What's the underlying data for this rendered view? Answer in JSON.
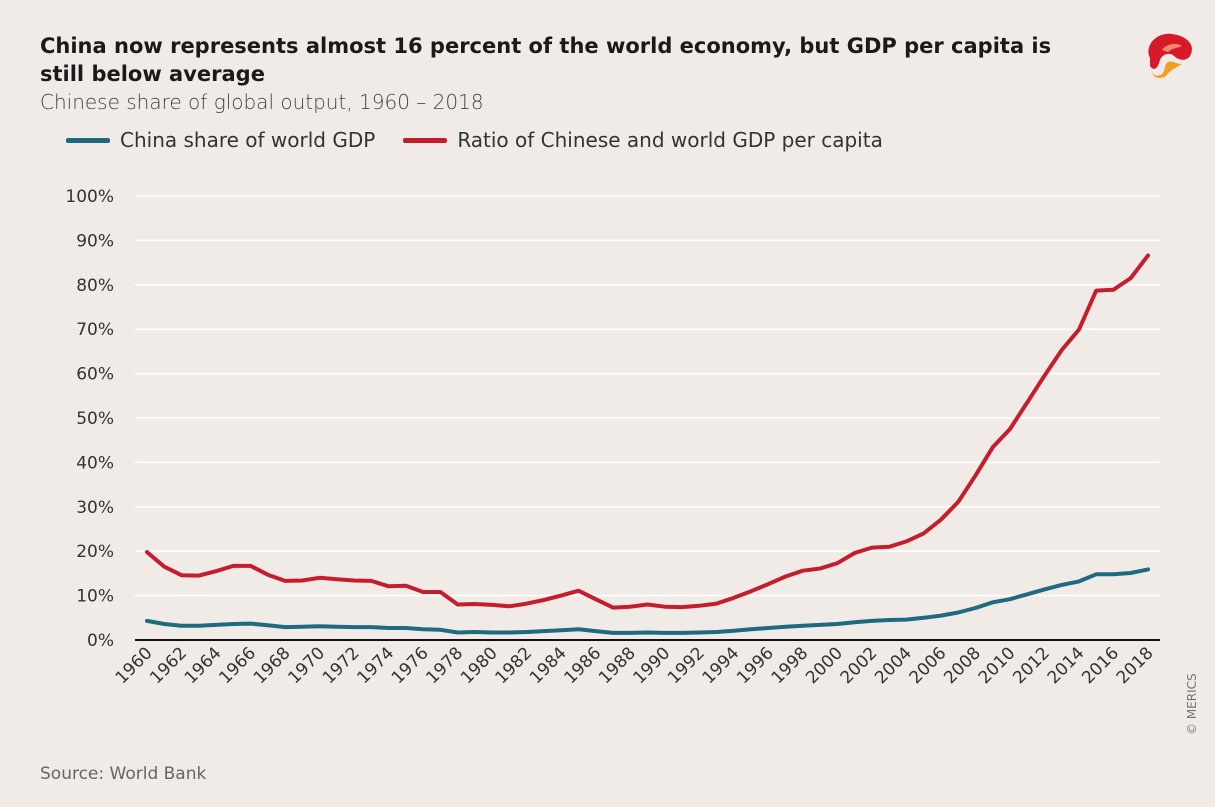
{
  "header": {
    "title": "China now represents almost 16 percent of the world economy, but GDP per capita is still below average",
    "subtitle": "Chinese share of global output, 1960 – 2018"
  },
  "footer": {
    "source": "Source: World Bank",
    "copyright": "© MERICS"
  },
  "colors": {
    "china_share": "#1e6a7e",
    "ratio": "#c41e2e",
    "logo_red": "#d71a2a",
    "logo_orange": "#f0a020"
  },
  "logo": {
    "icon": "merics-logo"
  },
  "chart_data": {
    "type": "line",
    "title": "China now represents almost 16 percent of the world economy, but GDP per capita is still below average",
    "subtitle": "Chinese share of global output, 1960 – 2018",
    "xlabel": "",
    "ylabel": "",
    "ylim": [
      0,
      100
    ],
    "yticks": [
      "0%",
      "10%",
      "20%",
      "30%",
      "40%",
      "50%",
      "60%",
      "70%",
      "80%",
      "90%",
      "100%"
    ],
    "xticks": [
      "1960",
      "1962",
      "1964",
      "1966",
      "1968",
      "1970",
      "1972",
      "1974",
      "1976",
      "1978",
      "1980",
      "1982",
      "1984",
      "1986",
      "1988",
      "1990",
      "1992",
      "1994",
      "1996",
      "1998",
      "2000",
      "2002",
      "2004",
      "2006",
      "2008",
      "2010",
      "2012",
      "2014",
      "2016",
      "2018"
    ],
    "grid": true,
    "legend": "top-left",
    "x": [
      1960,
      1961,
      1962,
      1963,
      1964,
      1965,
      1966,
      1967,
      1968,
      1969,
      1970,
      1971,
      1972,
      1973,
      1974,
      1975,
      1976,
      1977,
      1978,
      1979,
      1980,
      1981,
      1982,
      1983,
      1984,
      1985,
      1986,
      1987,
      1988,
      1989,
      1990,
      1991,
      1992,
      1993,
      1994,
      1995,
      1996,
      1997,
      1998,
      1999,
      2000,
      2001,
      2002,
      2003,
      2004,
      2005,
      2006,
      2007,
      2008,
      2009,
      2010,
      2011,
      2012,
      2013,
      2014,
      2015,
      2016,
      2017,
      2018
    ],
    "series": [
      {
        "name": "China share of world GDP",
        "values": [
          4.3,
          3.6,
          3.2,
          3.2,
          3.4,
          3.6,
          3.7,
          3.3,
          2.9,
          3.0,
          3.1,
          3.0,
          2.9,
          2.9,
          2.7,
          2.7,
          2.4,
          2.3,
          1.7,
          1.8,
          1.7,
          1.7,
          1.8,
          2.0,
          2.2,
          2.4,
          2.0,
          1.6,
          1.6,
          1.7,
          1.6,
          1.6,
          1.7,
          1.8,
          2.1,
          2.4,
          2.7,
          3.0,
          3.2,
          3.4,
          3.6,
          4.0,
          4.3,
          4.5,
          4.6,
          5.0,
          5.5,
          6.2,
          7.2,
          8.5,
          9.2,
          10.3,
          11.4,
          12.4,
          13.2,
          14.8,
          14.8,
          15.1,
          15.9
        ]
      },
      {
        "name": "Ratio of Chinese and world GDP per capita",
        "values": [
          19.8,
          16.5,
          14.6,
          14.5,
          15.5,
          16.7,
          16.7,
          14.7,
          13.3,
          13.4,
          14.0,
          13.7,
          13.4,
          13.3,
          12.1,
          12.2,
          10.8,
          10.8,
          8.0,
          8.1,
          7.9,
          7.6,
          8.2,
          9.0,
          10.0,
          11.1,
          9.2,
          7.3,
          7.5,
          8.0,
          7.5,
          7.4,
          7.7,
          8.2,
          9.5,
          11.0,
          12.6,
          14.3,
          15.6,
          16.1,
          17.3,
          19.6,
          20.8,
          21.0,
          22.2,
          24.0,
          27.1,
          31.1,
          37.0,
          43.4,
          47.5,
          53.5,
          59.5,
          65.3,
          69.9,
          78.7,
          78.9,
          81.5,
          86.6
        ]
      }
    ]
  }
}
